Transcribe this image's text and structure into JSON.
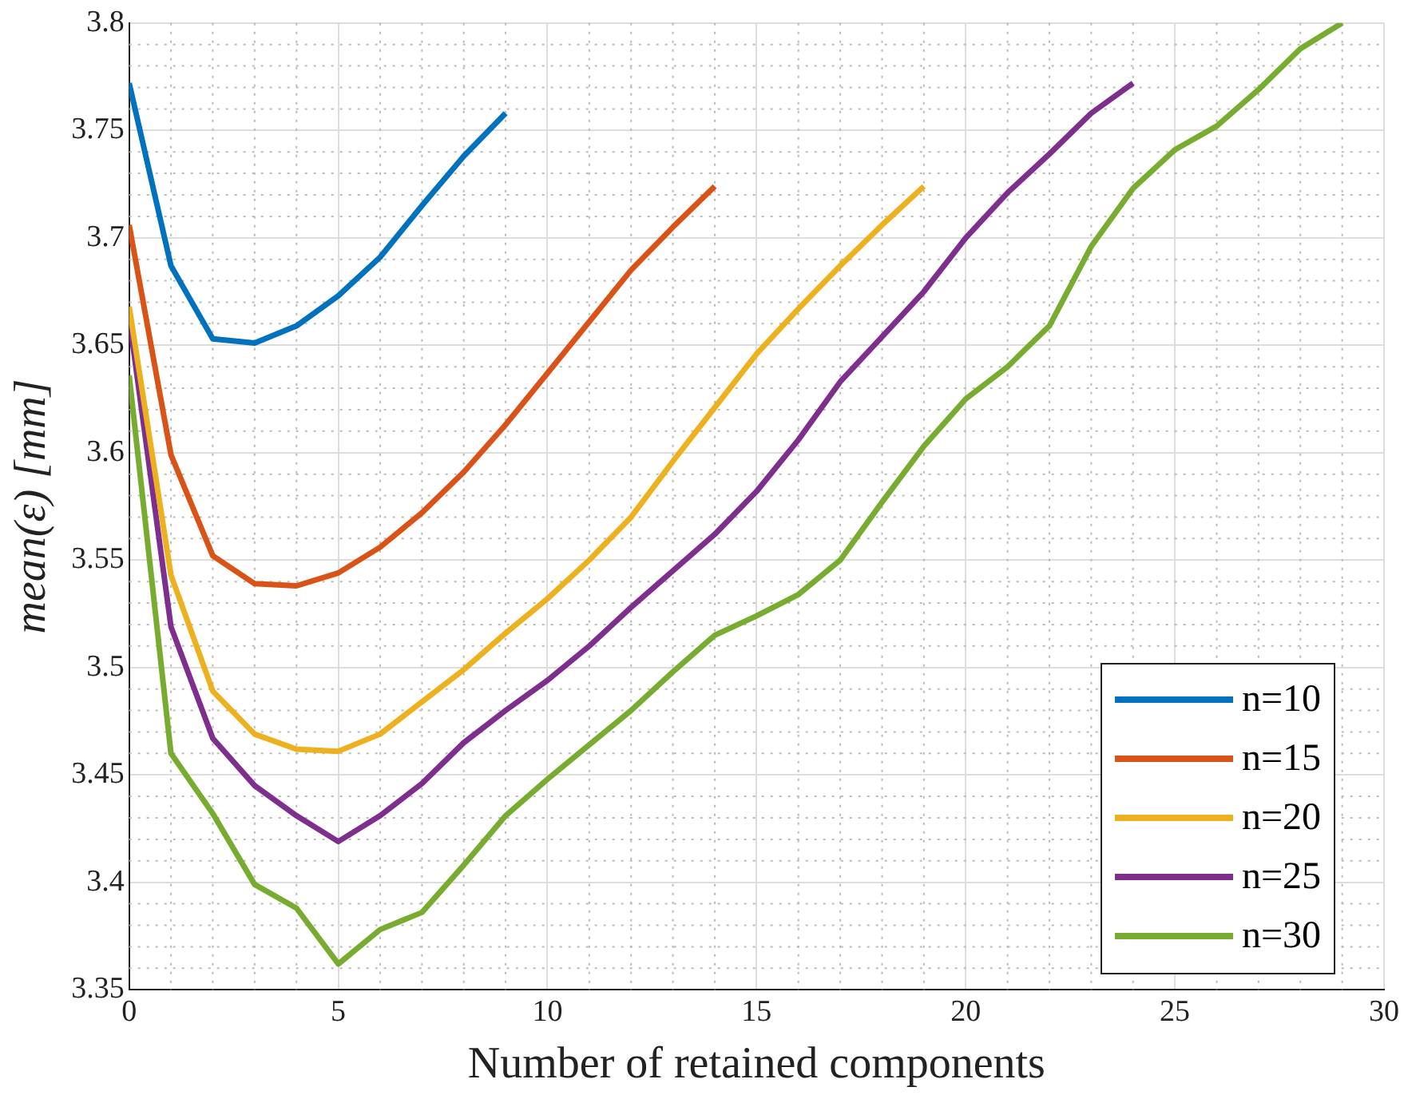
{
  "chart_data": {
    "type": "line",
    "xlabel": "Number of retained components",
    "ylabel": "mean(ε) [mm]",
    "xlim": [
      0,
      30
    ],
    "xticks": [
      0,
      5,
      10,
      15,
      20,
      25,
      30
    ],
    "ylim": [
      3.35,
      3.8
    ],
    "yticks": [
      3.35,
      3.4,
      3.45,
      3.5,
      3.55,
      3.6,
      3.65,
      3.7,
      3.75,
      3.8
    ],
    "grid": true,
    "legend": "bottom right",
    "marker": "none",
    "line_style": "solid",
    "series": [
      {
        "name": "n=10",
        "color": "#0072bd",
        "x": [
          0,
          1,
          2,
          3,
          4,
          5,
          6,
          7,
          8,
          9
        ],
        "values": [
          3.772,
          3.687,
          3.653,
          3.651,
          3.659,
          3.673,
          3.691,
          3.715,
          3.738,
          3.758
        ]
      },
      {
        "name": "n=15",
        "color": "#d95319",
        "x": [
          0,
          1,
          2,
          3,
          4,
          5,
          6,
          7,
          8,
          9,
          10,
          11,
          12,
          13,
          14
        ],
        "values": [
          3.706,
          3.599,
          3.552,
          3.539,
          3.538,
          3.544,
          3.556,
          3.572,
          3.591,
          3.613,
          3.637,
          3.661,
          3.685,
          3.705,
          3.724
        ]
      },
      {
        "name": "n=20",
        "color": "#edb120",
        "x": [
          0,
          1,
          2,
          3,
          4,
          5,
          6,
          7,
          8,
          9,
          10,
          11,
          12,
          13,
          14,
          15,
          16,
          17,
          18,
          19
        ],
        "values": [
          3.668,
          3.543,
          3.489,
          3.469,
          3.462,
          3.461,
          3.469,
          3.484,
          3.499,
          3.516,
          3.532,
          3.55,
          3.57,
          3.596,
          3.621,
          3.646,
          3.667,
          3.687,
          3.706,
          3.724
        ]
      },
      {
        "name": "n=25",
        "color": "#7e2f8e",
        "x": [
          0,
          1,
          2,
          3,
          4,
          5,
          6,
          7,
          8,
          9,
          10,
          11,
          12,
          13,
          14,
          15,
          16,
          17,
          18,
          19,
          20,
          21,
          22,
          23,
          24
        ],
        "values": [
          3.663,
          3.519,
          3.467,
          3.445,
          3.431,
          3.419,
          3.431,
          3.446,
          3.465,
          3.48,
          3.494,
          3.51,
          3.528,
          3.545,
          3.562,
          3.582,
          3.606,
          3.633,
          3.654,
          3.675,
          3.7,
          3.721,
          3.739,
          3.758,
          3.772
        ]
      },
      {
        "name": "n=30",
        "color": "#77ac30",
        "x": [
          0,
          1,
          2,
          3,
          4,
          5,
          6,
          7,
          8,
          9,
          10,
          11,
          12,
          13,
          14,
          15,
          16,
          17,
          18,
          19,
          20,
          21,
          22,
          23,
          24,
          25,
          26,
          27,
          28,
          29
        ],
        "values": [
          3.636,
          3.46,
          3.432,
          3.399,
          3.388,
          3.362,
          3.378,
          3.386,
          3.408,
          3.431,
          3.448,
          3.464,
          3.48,
          3.498,
          3.515,
          3.524,
          3.534,
          3.55,
          3.577,
          3.603,
          3.625,
          3.64,
          3.659,
          3.696,
          3.723,
          3.741,
          3.752,
          3.769,
          3.788,
          3.8
        ]
      }
    ]
  }
}
